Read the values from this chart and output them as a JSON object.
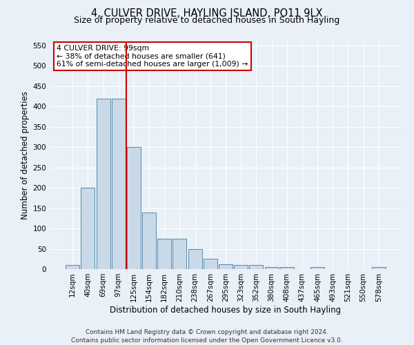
{
  "title": "4, CULVER DRIVE, HAYLING ISLAND, PO11 9LX",
  "subtitle": "Size of property relative to detached houses in South Hayling",
  "xlabel": "Distribution of detached houses by size in South Hayling",
  "ylabel": "Number of detached properties",
  "categories": [
    "12sqm",
    "40sqm",
    "69sqm",
    "97sqm",
    "125sqm",
    "154sqm",
    "182sqm",
    "210sqm",
    "238sqm",
    "267sqm",
    "295sqm",
    "323sqm",
    "352sqm",
    "380sqm",
    "408sqm",
    "437sqm",
    "465sqm",
    "493sqm",
    "521sqm",
    "550sqm",
    "578sqm"
  ],
  "values": [
    10,
    200,
    420,
    420,
    300,
    140,
    75,
    75,
    50,
    25,
    12,
    10,
    10,
    5,
    5,
    0,
    5,
    0,
    0,
    0,
    5
  ],
  "bar_color": "#c9d9e8",
  "bar_edge_color": "#5588aa",
  "red_line_index": 3,
  "property_label": "4 CULVER DRIVE: 99sqm",
  "annotation_line1": "← 38% of detached houses are smaller (641)",
  "annotation_line2": "61% of semi-detached houses are larger (1,009) →",
  "ylim": [
    0,
    560
  ],
  "yticks": [
    0,
    50,
    100,
    150,
    200,
    250,
    300,
    350,
    400,
    450,
    500,
    550
  ],
  "footer1": "Contains HM Land Registry data © Crown copyright and database right 2024.",
  "footer2": "Contains public sector information licensed under the Open Government Licence v3.0.",
  "bg_color": "#eaf0f7",
  "plot_bg_color": "#eaf0f7",
  "annotation_box_color": "#ffffff",
  "annotation_box_edge": "#cc0000",
  "red_line_color": "#cc0000",
  "title_fontsize": 10.5,
  "subtitle_fontsize": 9,
  "axis_label_fontsize": 8.5,
  "tick_fontsize": 7.5,
  "footer_fontsize": 6.5
}
